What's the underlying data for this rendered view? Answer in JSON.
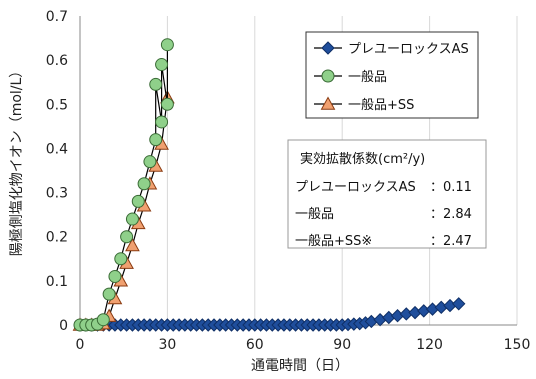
{
  "chart_data": {
    "type": "line",
    "xlabel": "通電時間（日）",
    "ylabel": "陽極側塩化物イオン（mol/L）",
    "xlim": [
      0,
      150
    ],
    "ylim": [
      0,
      0.7
    ],
    "xticks": [
      0,
      30,
      60,
      90,
      120,
      150
    ],
    "yticks": [
      0,
      0.1,
      0.2,
      0.3,
      0.4,
      0.5,
      0.6,
      0.7
    ],
    "ytick_labels": [
      "0",
      "0.1",
      "0.2",
      "0.3",
      "0.4",
      "0.5",
      "0.6",
      "0.7"
    ],
    "grid": "vertical",
    "legend_position": "top-right",
    "series": [
      {
        "name": "プレユーロックスAS",
        "marker": "diamond",
        "color": "#1f4e9c",
        "x": [
          0,
          2,
          4,
          6,
          8,
          10,
          12,
          14,
          16,
          18,
          20,
          22,
          24,
          26,
          28,
          30,
          32,
          34,
          36,
          38,
          40,
          42,
          44,
          46,
          48,
          50,
          52,
          54,
          56,
          58,
          60,
          62,
          64,
          66,
          68,
          70,
          72,
          74,
          76,
          78,
          80,
          82,
          84,
          86,
          88,
          90,
          92,
          94,
          96,
          98,
          100,
          103,
          106,
          109,
          112,
          115,
          118,
          121,
          124,
          127,
          130
        ],
        "y": [
          0,
          0,
          0,
          0,
          0,
          0,
          0,
          0,
          0,
          0,
          0,
          0,
          0,
          0,
          0,
          0,
          0,
          0,
          0,
          0,
          0,
          0,
          0,
          0,
          0,
          0,
          0,
          0,
          0,
          0,
          0,
          0,
          0,
          0,
          0,
          0,
          0,
          0,
          0,
          0,
          0,
          0,
          0,
          0,
          0,
          0,
          0.001,
          0.002,
          0.003,
          0.005,
          0.008,
          0.012,
          0.017,
          0.021,
          0.025,
          0.028,
          0.032,
          0.036,
          0.04,
          0.044,
          0.048
        ]
      },
      {
        "name": "一般品",
        "marker": "circle",
        "color": "#8fd08a",
        "x": [
          0,
          2,
          4,
          6,
          8,
          10,
          12,
          14,
          16,
          18,
          20,
          22,
          24,
          26,
          28,
          30
        ],
        "y": [
          0,
          0,
          0,
          0.002,
          0.012,
          0.07,
          0.11,
          0.15,
          0.2,
          0.24,
          0.28,
          0.32,
          0.37,
          0.42,
          0.46,
          0.5
        ],
        "x_extra": [
          26,
          28,
          30
        ],
        "y_extra": [
          0.545,
          0.59,
          0.635
        ]
      },
      {
        "name": "一般品+SS",
        "marker": "triangle",
        "color": "#f0a070",
        "x": [
          0,
          2,
          4,
          6,
          8,
          10,
          12,
          14,
          16,
          18,
          20,
          22,
          24,
          26,
          28,
          30
        ],
        "y": [
          0,
          0,
          0,
          0,
          0.003,
          0.02,
          0.06,
          0.1,
          0.14,
          0.18,
          0.23,
          0.27,
          0.32,
          0.36,
          0.41,
          0.515
        ]
      }
    ],
    "legend": [
      "プレユーロックスAS",
      "一般品",
      "一般品+SS"
    ],
    "coefficient_box": {
      "title": "実効拡散係数(cm²/y)",
      "rows": [
        {
          "label": "プレユーロックスAS",
          "value": "：0.11"
        },
        {
          "label": "一般品",
          "value": "：2.84"
        },
        {
          "label": "一般品+SS※",
          "value": "：2.47"
        }
      ]
    }
  }
}
